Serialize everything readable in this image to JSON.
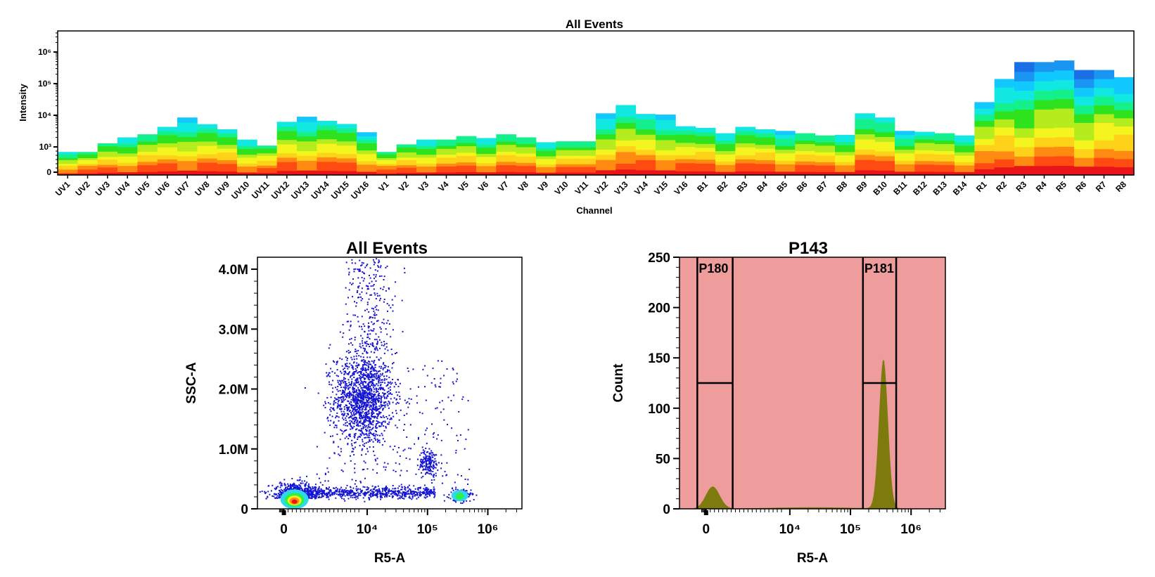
{
  "chart_data": [
    {
      "type": "heatmap",
      "title": "All Events",
      "xlabel": "Channel",
      "ylabel": "Intensity",
      "yscale": "log",
      "ytick_labels": [
        "0",
        "10³",
        "10⁴",
        "10⁵",
        "10⁶"
      ],
      "colormap": [
        "#e8141a",
        "#ff4a12",
        "#ff8a12",
        "#ffd21a",
        "#f4f41e",
        "#b4ec1e",
        "#2fe21e",
        "#13f08c",
        "#11e8e2",
        "#11c8ff",
        "#1a96f2",
        "#1a6ee6"
      ],
      "channels": [
        "UV1",
        "UV2",
        "UV3",
        "UV4",
        "UV5",
        "UV6",
        "UV7",
        "UV8",
        "UV9",
        "UV10",
        "UV11",
        "UV12",
        "UV13",
        "UV14",
        "UV15",
        "UV16",
        "V1",
        "V2",
        "V3",
        "V4",
        "V5",
        "V6",
        "V7",
        "V8",
        "V9",
        "V10",
        "V11",
        "V12",
        "V13",
        "V14",
        "V15",
        "V16",
        "B1",
        "B2",
        "B3",
        "B4",
        "B5",
        "B6",
        "B7",
        "B8",
        "B9",
        "B10",
        "B11",
        "B12",
        "B13",
        "B14",
        "R1",
        "R2",
        "R3",
        "R4",
        "R5",
        "R6",
        "R7",
        "R8"
      ],
      "max_intensity": [
        800,
        800,
        1300,
        2000,
        2500,
        4300,
        8500,
        5200,
        3600,
        1700,
        1100,
        6200,
        9000,
        6700,
        5300,
        2900,
        800,
        1200,
        1700,
        1700,
        2200,
        1900,
        2500,
        2000,
        1400,
        1500,
        1500,
        11500,
        21000,
        11000,
        10500,
        4500,
        4000,
        2700,
        4300,
        3600,
        3200,
        2700,
        2300,
        2400,
        11500,
        8500,
        3200,
        3000,
        2700,
        2300,
        26000,
        140000,
        480000,
        480000,
        540000,
        270000,
        270000,
        160000
      ]
    },
    {
      "type": "scatter",
      "title": "All Events",
      "xlabel": "R5-A",
      "ylabel": "SSC-A",
      "xscale": "biexponential",
      "ylim": [
        0,
        4200000
      ],
      "ytick_labels": [
        "0",
        "1.0M",
        "2.0M",
        "3.0M",
        "4.0M"
      ],
      "xtick_labels": [
        "0",
        "10⁴",
        "10⁵",
        "10⁶"
      ],
      "populations": [
        {
          "x_center": 2000,
          "y_center": 180000,
          "note": "dense"
        },
        {
          "x_center": 8000,
          "y_center": 1850000
        },
        {
          "x_center": 80000,
          "y_center": 800000
        },
        {
          "x_center": 400000,
          "y_center": 250000
        },
        {
          "x_center": 20000,
          "y_center": 300000
        }
      ]
    },
    {
      "type": "area",
      "title": "P143",
      "xlabel": "R5-A",
      "ylabel": "Count",
      "xscale": "biexponential",
      "ylim": [
        0,
        250
      ],
      "ytick_labels": [
        "0",
        "50",
        "100",
        "150",
        "200",
        "250"
      ],
      "xtick_labels": [
        "0",
        "10⁴",
        "10⁵",
        "10⁶"
      ],
      "fill_color": "#7d7a0e",
      "background_color": "#ee9c9c",
      "peaks": [
        {
          "x": 2000,
          "count": 22
        },
        {
          "x": 350000,
          "count": 148
        }
      ],
      "gates": [
        {
          "name": "P180",
          "level": 125
        },
        {
          "name": "P181",
          "level": 125
        }
      ]
    }
  ]
}
